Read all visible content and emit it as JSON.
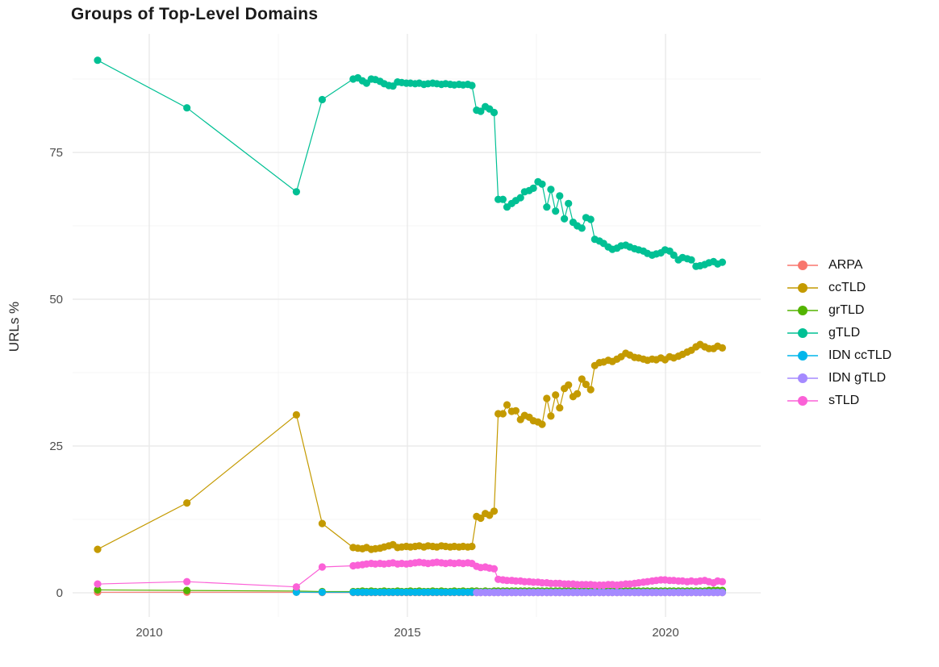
{
  "title": "Groups of Top-Level Domains",
  "ylabel": "URLs %",
  "colors": {
    "background": "#ffffff",
    "grid_major": "#e8e8e8",
    "grid_minor": "#f4f4f4",
    "tick_text": "#4d4d4d",
    "title_text": "#1b1b1b"
  },
  "chart_data": {
    "type": "line",
    "title": "Groups of Top-Level Domains",
    "xlabel": "",
    "ylabel": "URLs %",
    "grid": true,
    "legend_position": "right",
    "xlim": [
      2008.5,
      2021.9
    ],
    "ylim": [
      -4,
      95
    ],
    "x_ticks": [
      "2010",
      "2015",
      "2020"
    ],
    "x_tick_values": [
      2010,
      2015,
      2020
    ],
    "x_minor": [
      2012.5,
      2017.5
    ],
    "y_ticks": [
      "0",
      "25",
      "50",
      "75"
    ],
    "y_tick_values": [
      0,
      25,
      50,
      75
    ],
    "y_minor": [
      12.5,
      37.5,
      62.5,
      87.5
    ],
    "x": [
      2009.0,
      2010.73,
      2012.85,
      2013.35,
      2013.95,
      2014.04,
      2014.13,
      2014.21,
      2014.3,
      2014.38,
      2014.47,
      2014.55,
      2014.64,
      2014.72,
      2014.81,
      2014.89,
      2014.98,
      2015.06,
      2015.15,
      2015.23,
      2015.32,
      2015.4,
      2015.49,
      2015.57,
      2015.66,
      2015.74,
      2015.83,
      2015.91,
      2016.0,
      2016.08,
      2016.17,
      2016.25,
      2016.34,
      2016.42,
      2016.51,
      2016.59,
      2016.68,
      2016.76,
      2016.85,
      2016.93,
      2017.02,
      2017.1,
      2017.19,
      2017.27,
      2017.36,
      2017.44,
      2017.53,
      2017.61,
      2017.7,
      2017.78,
      2017.87,
      2017.95,
      2018.04,
      2018.12,
      2018.21,
      2018.29,
      2018.38,
      2018.46,
      2018.55,
      2018.63,
      2018.72,
      2018.8,
      2018.89,
      2018.97,
      2019.06,
      2019.14,
      2019.23,
      2019.31,
      2019.4,
      2019.48,
      2019.57,
      2019.65,
      2019.74,
      2019.82,
      2019.91,
      2019.99,
      2020.08,
      2020.16,
      2020.25,
      2020.33,
      2020.42,
      2020.5,
      2020.59,
      2020.67,
      2020.76,
      2020.84,
      2020.93,
      2021.01,
      2021.1
    ],
    "series": [
      {
        "name": "ARPA",
        "color": "#F8766D",
        "values": [
          0.1,
          0.1,
          0.1,
          0.05,
          0.05,
          0.05,
          0.05,
          0.05,
          0.05,
          0.05,
          0.05,
          0.05,
          0.05,
          0.05,
          0.05,
          0.05,
          0.05,
          0.05,
          0.05,
          0.05,
          0.05,
          0.05,
          0.05,
          0.05,
          0.05,
          0.05,
          0.05,
          0.05,
          0.05,
          0.05,
          0.05,
          0.05,
          0.05,
          0.05,
          0.05,
          0.05,
          0.05,
          0.05,
          0.05,
          0.05,
          0.05,
          0.05,
          0.05,
          0.05,
          0.05,
          0.05,
          0.05,
          0.05,
          0.05,
          0.05,
          0.05,
          0.05,
          0.05,
          0.05,
          0.05,
          0.05,
          0.05,
          0.05,
          0.05,
          0.05,
          0.05,
          0.05,
          0.05,
          0.05,
          0.05,
          0.05,
          0.05,
          0.05,
          0.05,
          0.05,
          0.05,
          0.05,
          0.05,
          0.05,
          0.05,
          0.05,
          0.05,
          0.05,
          0.05,
          0.05,
          0.05,
          0.05,
          0.05,
          0.05,
          0.05,
          0.05,
          0.05,
          0.05,
          0.05
        ]
      },
      {
        "name": "ccTLD",
        "color": "#C49A00",
        "values": [
          7.4,
          15.3,
          30.3,
          11.8,
          7.7,
          7.6,
          7.5,
          7.7,
          7.4,
          7.5,
          7.6,
          7.8,
          8.0,
          8.2,
          7.7,
          7.8,
          7.9,
          7.8,
          7.9,
          8.0,
          7.8,
          8.0,
          7.9,
          7.8,
          8.0,
          7.9,
          7.8,
          7.9,
          7.8,
          7.9,
          7.8,
          7.9,
          13.0,
          12.7,
          13.5,
          13.2,
          13.9,
          30.5,
          30.5,
          32.0,
          30.9,
          31.0,
          29.5,
          30.2,
          29.9,
          29.3,
          29.1,
          28.7,
          33.1,
          30.1,
          33.7,
          31.5,
          34.8,
          35.4,
          33.4,
          33.9,
          36.4,
          35.5,
          34.6,
          38.7,
          39.2,
          39.3,
          39.6,
          39.4,
          39.8,
          40.2,
          40.8,
          40.5,
          40.1,
          40.0,
          39.8,
          39.6,
          39.8,
          39.7,
          40.0,
          39.7,
          40.2,
          40.0,
          40.3,
          40.6,
          41.0,
          41.3,
          41.9,
          42.3,
          41.9,
          41.6,
          41.6,
          42.0,
          41.7
        ]
      },
      {
        "name": "grTLD",
        "color": "#53B400",
        "values": [
          0.5,
          0.4,
          0.3,
          0.2,
          0.2,
          0.2,
          0.3,
          0.2,
          0.3,
          0.2,
          0.2,
          0.3,
          0.2,
          0.2,
          0.3,
          0.2,
          0.2,
          0.3,
          0.2,
          0.3,
          0.2,
          0.2,
          0.3,
          0.2,
          0.3,
          0.2,
          0.2,
          0.3,
          0.2,
          0.3,
          0.2,
          0.3,
          0.3,
          0.2,
          0.3,
          0.2,
          0.3,
          0.3,
          0.3,
          0.3,
          0.3,
          0.3,
          0.3,
          0.3,
          0.3,
          0.3,
          0.3,
          0.3,
          0.3,
          0.3,
          0.3,
          0.3,
          0.3,
          0.3,
          0.3,
          0.3,
          0.3,
          0.3,
          0.3,
          0.3,
          0.3,
          0.3,
          0.3,
          0.3,
          0.3,
          0.3,
          0.3,
          0.3,
          0.3,
          0.3,
          0.3,
          0.3,
          0.3,
          0.3,
          0.3,
          0.3,
          0.3,
          0.3,
          0.3,
          0.3,
          0.3,
          0.3,
          0.3,
          0.3,
          0.3,
          0.4,
          0.4,
          0.4,
          0.4
        ]
      },
      {
        "name": "gTLD",
        "color": "#00C094",
        "values": [
          90.7,
          82.6,
          68.3,
          84.0,
          87.5,
          87.7,
          87.2,
          86.8,
          87.5,
          87.4,
          87.1,
          86.7,
          86.4,
          86.3,
          87.0,
          86.9,
          86.8,
          86.8,
          86.7,
          86.8,
          86.6,
          86.7,
          86.8,
          86.7,
          86.6,
          86.7,
          86.6,
          86.5,
          86.6,
          86.5,
          86.6,
          86.4,
          82.2,
          82.0,
          82.8,
          82.4,
          81.8,
          67.0,
          67.0,
          65.7,
          66.3,
          66.8,
          67.3,
          68.3,
          68.5,
          68.9,
          70.0,
          69.6,
          65.7,
          68.7,
          65.0,
          67.6,
          63.7,
          66.3,
          63.1,
          62.5,
          62.1,
          63.9,
          63.6,
          60.2,
          59.9,
          59.5,
          58.9,
          58.5,
          58.7,
          59.1,
          59.2,
          58.9,
          58.6,
          58.4,
          58.2,
          57.8,
          57.5,
          57.7,
          57.9,
          58.4,
          58.2,
          57.5,
          56.7,
          57.1,
          56.9,
          56.7,
          55.6,
          55.7,
          55.9,
          56.2,
          56.4,
          56.0,
          56.3
        ]
      },
      {
        "name": "IDN ccTLD",
        "color": "#00B6EB",
        "values": [
          null,
          null,
          0.1,
          0.1,
          0.1,
          0.1,
          0.1,
          0.1,
          0.1,
          0.1,
          0.1,
          0.1,
          0.1,
          0.1,
          0.1,
          0.1,
          0.1,
          0.1,
          0.1,
          0.1,
          0.1,
          0.1,
          0.1,
          0.1,
          0.1,
          0.1,
          0.1,
          0.1,
          0.1,
          0.1,
          0.1,
          0.1,
          0.1,
          0.1,
          0.1,
          0.1,
          0.1,
          0.1,
          0.1,
          0.1,
          0.1,
          0.1,
          0.1,
          0.1,
          0.1,
          0.1,
          0.1,
          0.1,
          0.1,
          0.1,
          0.1,
          0.1,
          0.1,
          0.1,
          0.1,
          0.1,
          0.1,
          0.1,
          0.1,
          0.1,
          0.1,
          0.1,
          0.1,
          0.1,
          0.1,
          0.1,
          0.1,
          0.1,
          0.1,
          0.1,
          0.1,
          0.1,
          0.1,
          0.1,
          0.1,
          0.1,
          0.1,
          0.1,
          0.1,
          0.1,
          0.1,
          0.1,
          0.1,
          0.1,
          0.1,
          0.1,
          0.1,
          0.1,
          0.1
        ]
      },
      {
        "name": "IDN gTLD",
        "color": "#A58AFF",
        "values": [
          null,
          null,
          null,
          null,
          null,
          null,
          null,
          null,
          null,
          null,
          null,
          null,
          null,
          null,
          null,
          null,
          null,
          null,
          null,
          null,
          null,
          null,
          null,
          null,
          null,
          null,
          null,
          null,
          null,
          null,
          null,
          null,
          0.05,
          0.05,
          0.05,
          0.05,
          0.05,
          0.05,
          0.05,
          0.05,
          0.05,
          0.05,
          0.05,
          0.05,
          0.05,
          0.05,
          0.05,
          0.05,
          0.05,
          0.05,
          0.05,
          0.05,
          0.05,
          0.05,
          0.05,
          0.05,
          0.05,
          0.05,
          0.05,
          0.05,
          0.05,
          0.05,
          0.05,
          0.05,
          0.05,
          0.05,
          0.05,
          0.05,
          0.05,
          0.05,
          0.05,
          0.05,
          0.05,
          0.05,
          0.05,
          0.05,
          0.05,
          0.05,
          0.05,
          0.05,
          0.05,
          0.05,
          0.05,
          0.05,
          0.05,
          0.05,
          0.05,
          0.05,
          0.05
        ]
      },
      {
        "name": "sTLD",
        "color": "#FB61D7",
        "values": [
          1.5,
          1.9,
          1.0,
          4.4,
          4.6,
          4.7,
          4.8,
          4.9,
          5.0,
          4.9,
          5.0,
          4.9,
          5.0,
          5.1,
          4.9,
          5.0,
          4.9,
          5.0,
          5.1,
          5.2,
          5.1,
          5.0,
          5.1,
          5.2,
          5.1,
          5.0,
          5.1,
          5.0,
          5.1,
          5.0,
          5.1,
          5.0,
          4.5,
          4.3,
          4.4,
          4.2,
          4.1,
          2.3,
          2.2,
          2.1,
          2.1,
          2.0,
          2.0,
          1.9,
          1.9,
          1.8,
          1.8,
          1.7,
          1.7,
          1.6,
          1.6,
          1.6,
          1.5,
          1.5,
          1.5,
          1.4,
          1.4,
          1.4,
          1.4,
          1.3,
          1.3,
          1.3,
          1.4,
          1.4,
          1.3,
          1.4,
          1.5,
          1.5,
          1.6,
          1.7,
          1.8,
          1.9,
          2.0,
          2.1,
          2.2,
          2.2,
          2.1,
          2.1,
          2.0,
          2.0,
          1.9,
          2.0,
          1.9,
          2.0,
          2.1,
          1.9,
          1.7,
          2.0,
          1.9
        ]
      }
    ]
  }
}
